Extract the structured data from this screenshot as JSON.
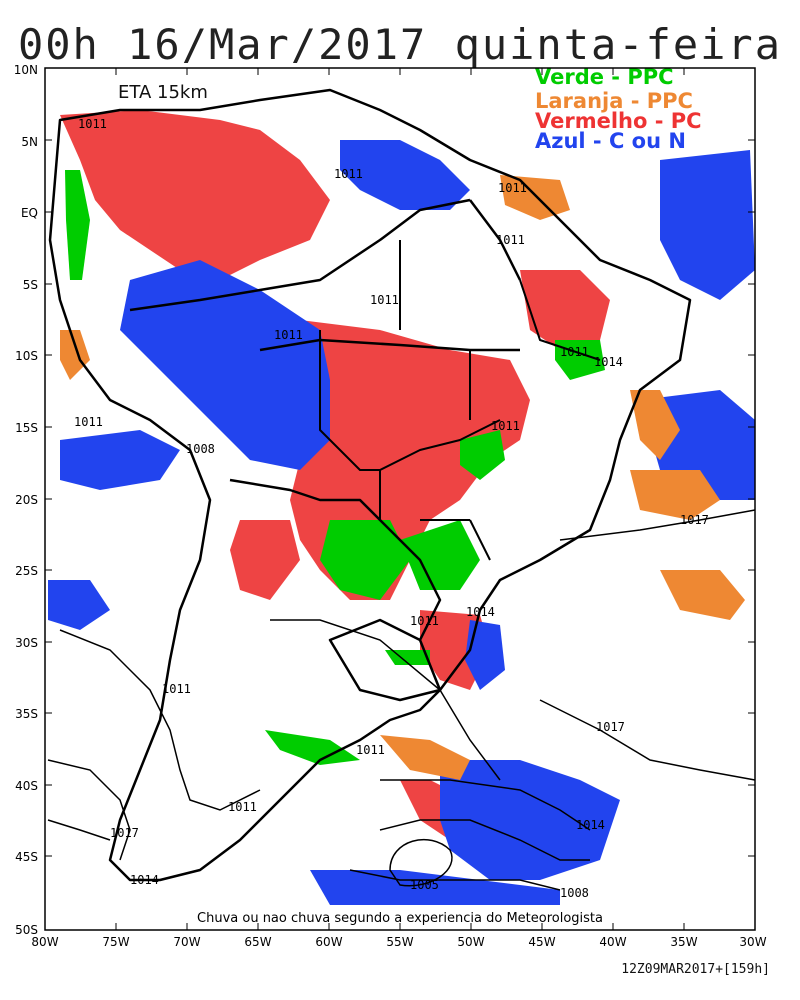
{
  "title": "00h 16/Mar/2017 quinta-feira",
  "model_label": "ETA 15km",
  "legend": [
    {
      "text": "Verde - PPC",
      "color": "#00cc00"
    },
    {
      "text": "Laranja - PPC",
      "color": "#ee8833"
    },
    {
      "text": "Vermelho - PC",
      "color": "#ee3333"
    },
    {
      "text": "Azul - C ou N",
      "color": "#2244ee"
    }
  ],
  "bottom_note": "Chuva ou nao chuva segundo a experiencia do Meteorologista",
  "run_info": "12Z09MAR2017+[159h]",
  "lat_labels": [
    "10N",
    "5N",
    "EQ",
    "5S",
    "10S",
    "15S",
    "20S",
    "25S",
    "30S",
    "35S",
    "40S",
    "45S",
    "50S"
  ],
  "lon_labels": [
    "80W",
    "75W",
    "70W",
    "65W",
    "60W",
    "55W",
    "50W",
    "45W",
    "40W",
    "35W",
    "30W"
  ],
  "isobar_labels": [
    "1011",
    "1011",
    "1011",
    "1011",
    "1011",
    "1011",
    "1011",
    "1014",
    "1011",
    "1008",
    "1017",
    "1011",
    "1014",
    "1011",
    "1017",
    "1011",
    "1011",
    "1017",
    "1014",
    "1011",
    "1005",
    "1008",
    "1014"
  ]
}
